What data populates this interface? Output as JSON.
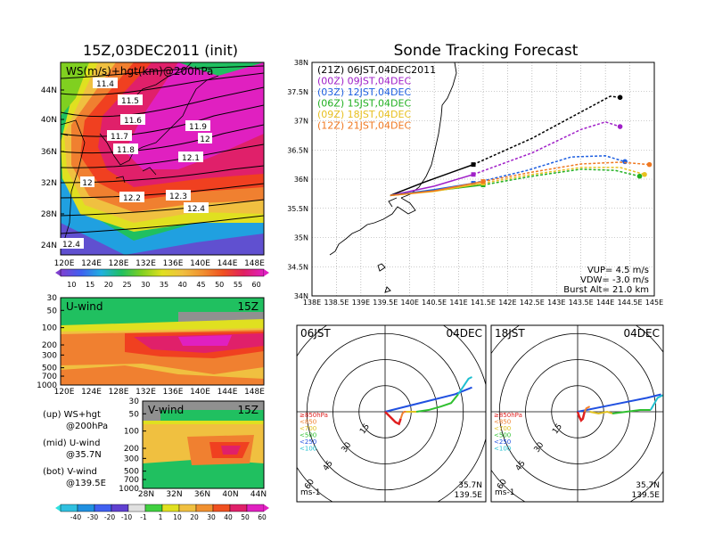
{
  "left": {
    "title": "15Z,03DEC2011 (init)",
    "map_label": "WS(m/s)+hgt(km)@200hPa",
    "lat_ticks": [
      "44N",
      "40N",
      "36N",
      "32N",
      "28N",
      "24N"
    ],
    "lon_ticks": [
      "120E",
      "124E",
      "128E",
      "132E",
      "136E",
      "140E",
      "144E",
      "148E"
    ],
    "contour_labels": [
      "11.4",
      "11.5",
      "11.6",
      "11.7",
      "11.8",
      "11.9",
      "12",
      "12",
      "12.1",
      "12.2",
      "12.3",
      "12.4",
      "12.4"
    ],
    "ws_colorbar": [
      "10",
      "15",
      "20",
      "25",
      "30",
      "35",
      "40",
      "45",
      "50",
      "55",
      "60"
    ],
    "uwind": {
      "label": "U-wind",
      "time": "15Z",
      "p_ticks": [
        "30",
        "50",
        "100",
        "200",
        "300",
        "500",
        "700",
        "1000"
      ],
      "lon_ticks": [
        "120E",
        "124E",
        "128E",
        "132E",
        "136E",
        "140E",
        "144E",
        "148E"
      ]
    },
    "vwind": {
      "label": "V-wind",
      "time": "15Z",
      "p_ticks": [
        "30",
        "50",
        "100",
        "200",
        "300",
        "500",
        "700",
        "1000"
      ],
      "lat_ticks": [
        "28N",
        "32N",
        "36N",
        "40N",
        "44N"
      ]
    },
    "legend": {
      "up": "(up) WS+hgt",
      "up2": "@200hPa",
      "mid": "(mid) U-wind",
      "mid2": "@35.7N",
      "bot": "(bot) V-wind",
      "bot2": "@139.5E"
    },
    "wind_colorbar": [
      "-40",
      "-30",
      "-20",
      "-10",
      "-1",
      "1",
      "10",
      "20",
      "30",
      "40",
      "50",
      "60"
    ]
  },
  "right": {
    "title": "Sonde Tracking Forecast",
    "lat_ticks": [
      "38N",
      "37.5N",
      "37N",
      "36.5N",
      "36N",
      "35.5N",
      "35N",
      "34.5N",
      "34N"
    ],
    "lon_ticks": [
      "138E",
      "138.5E",
      "139E",
      "139.5E",
      "140E",
      "140.5E",
      "141E",
      "141.5E",
      "142E",
      "142.5E",
      "143E",
      "143.5E",
      "144E",
      "144.5E",
      "145E"
    ],
    "legend": [
      {
        "text": "(21Z)  06JST,04DEC2011",
        "color": "#000000"
      },
      {
        "text": "(00Z)  09JST,04DEC",
        "color": "#a020c8"
      },
      {
        "text": "(03Z)  12JST,04DEC",
        "color": "#1e5fe0"
      },
      {
        "text": "(06Z)  15JST,04DEC",
        "color": "#22b022"
      },
      {
        "text": "(09Z)  18JST,04DEC",
        "color": "#e8c020"
      },
      {
        "text": "(12Z)  21JST,04DEC",
        "color": "#f07820"
      }
    ],
    "params": [
      "VUP=  4.5  m/s",
      "VDW=  -3.0  m/s",
      "Burst Alt=  21.0  km"
    ]
  },
  "hodo1": {
    "time": "06JST",
    "date": "04DEC",
    "lat": "35.7N",
    "lon": "139.5E",
    "unit": "ms-1"
  },
  "hodo2": {
    "time": "18JST",
    "date": "04DEC",
    "lat": "35.7N",
    "lon": "139.5E",
    "unit": "ms-1"
  },
  "hodo_rings": [
    "15",
    "30",
    "45",
    "60"
  ],
  "hodo_legend": [
    "≥850hPa",
    "<850",
    "<700",
    "<500",
    "<250",
    "<100"
  ],
  "chart_data": [
    {
      "type": "heatmap",
      "title": "15Z,03DEC2011 (init)",
      "subtitle": "WS(m/s)+hgt(km)@200hPa",
      "xlim": [
        120,
        150
      ],
      "ylim": [
        22,
        47
      ],
      "colorbar": [
        10,
        15,
        20,
        25,
        30,
        35,
        40,
        45,
        50,
        55,
        60
      ],
      "contours": [
        11.4,
        11.5,
        11.6,
        11.7,
        11.8,
        11.9,
        12,
        12.1,
        12.2,
        12.3,
        12.4
      ]
    },
    {
      "type": "heatmap",
      "title": "U-wind",
      "xlim": [
        120,
        150
      ],
      "ylim": [
        1000,
        30
      ]
    },
    {
      "type": "heatmap",
      "title": "V-wind",
      "xlim": [
        28,
        44
      ],
      "ylim": [
        1000,
        30
      ],
      "colorbar": [
        -40,
        -30,
        -20,
        -10,
        -1,
        1,
        10,
        20,
        30,
        40,
        50,
        60
      ]
    },
    {
      "type": "line",
      "title": "Sonde Tracking Forecast",
      "xlim": [
        138,
        145
      ],
      "ylim": [
        34,
        38
      ],
      "series": [
        {
          "name": "(21Z)  06JST,04DEC2011",
          "x": [
            139.6,
            140.3,
            141.3,
            142.5,
            143.5,
            144.1,
            144.3
          ],
          "y": [
            35.72,
            35.95,
            36.25,
            36.7,
            37.15,
            37.42,
            37.4
          ]
        },
        {
          "name": "(00Z)  09JST,04DEC",
          "x": [
            139.6,
            140.5,
            141.3,
            142.5,
            143.5,
            144.0,
            144.3
          ],
          "y": [
            35.72,
            35.88,
            36.08,
            36.45,
            36.85,
            36.98,
            36.9
          ]
        },
        {
          "name": "(03Z)  12JST,04DEC",
          "x": [
            139.6,
            140.5,
            141.3,
            142.4,
            143.3,
            144.0,
            144.4
          ],
          "y": [
            35.72,
            35.82,
            35.93,
            36.15,
            36.38,
            36.4,
            36.3
          ]
        },
        {
          "name": "(06Z)  15JST,04DEC",
          "x": [
            139.6,
            140.5,
            141.5,
            142.5,
            143.5,
            144.2,
            144.7
          ],
          "y": [
            35.72,
            35.8,
            35.9,
            36.05,
            36.17,
            36.15,
            36.05
          ]
        },
        {
          "name": "(09Z)  18JST,04DEC",
          "x": [
            139.6,
            140.5,
            141.5,
            142.5,
            143.5,
            144.3,
            144.8
          ],
          "y": [
            35.72,
            35.79,
            35.93,
            36.08,
            36.2,
            36.2,
            36.08
          ]
        },
        {
          "name": "(12Z)  21JST,04DEC",
          "x": [
            139.6,
            140.5,
            141.5,
            142.5,
            143.5,
            144.3,
            144.9
          ],
          "y": [
            35.72,
            35.8,
            35.96,
            36.12,
            36.26,
            36.29,
            36.25
          ]
        }
      ]
    },
    {
      "type": "line",
      "title": "06JST 04DEC",
      "series": [
        {
          "name": "≥850hPa",
          "x": [
            0,
            3,
            6,
            8,
            9
          ],
          "y": [
            0,
            -3,
            -6,
            -7,
            -4
          ]
        },
        {
          "name": "<850",
          "x": [
            9,
            10,
            11,
            12
          ],
          "y": [
            -4,
            -1,
            0,
            0
          ]
        },
        {
          "name": "<700",
          "x": [
            12,
            14,
            16,
            18
          ],
          "y": [
            0,
            0,
            0,
            0
          ]
        },
        {
          "name": "<500",
          "x": [
            18,
            25,
            32,
            38,
            42
          ],
          "y": [
            0,
            1,
            3,
            5,
            10
          ]
        },
        {
          "name": "<250",
          "x": [
            0,
            20,
            40,
            50
          ],
          "y": [
            0,
            5,
            10,
            14
          ]
        },
        {
          "name": "<100",
          "x": [
            42,
            48,
            50
          ],
          "y": [
            10,
            19,
            20
          ]
        }
      ]
    },
    {
      "type": "line",
      "title": "18JST 04DEC",
      "series": [
        {
          "name": "≥850hPa",
          "x": [
            0,
            1,
            2,
            3,
            4
          ],
          "y": [
            0,
            -3,
            -5,
            -4,
            0
          ]
        },
        {
          "name": "<850",
          "x": [
            4,
            5,
            7
          ],
          "y": [
            0,
            2,
            3
          ]
        },
        {
          "name": "<700",
          "x": [
            7,
            12,
            17,
            20
          ],
          "y": [
            0,
            -1,
            0,
            -1
          ]
        },
        {
          "name": "<500",
          "x": [
            20,
            28,
            36,
            42
          ],
          "y": [
            -1,
            0,
            1,
            1
          ]
        },
        {
          "name": "<250",
          "x": [
            0,
            20,
            40,
            48
          ],
          "y": [
            0,
            4,
            8,
            10
          ]
        },
        {
          "name": "<100",
          "x": [
            42,
            46,
            50
          ],
          "y": [
            1,
            8,
            10
          ]
        }
      ]
    }
  ]
}
